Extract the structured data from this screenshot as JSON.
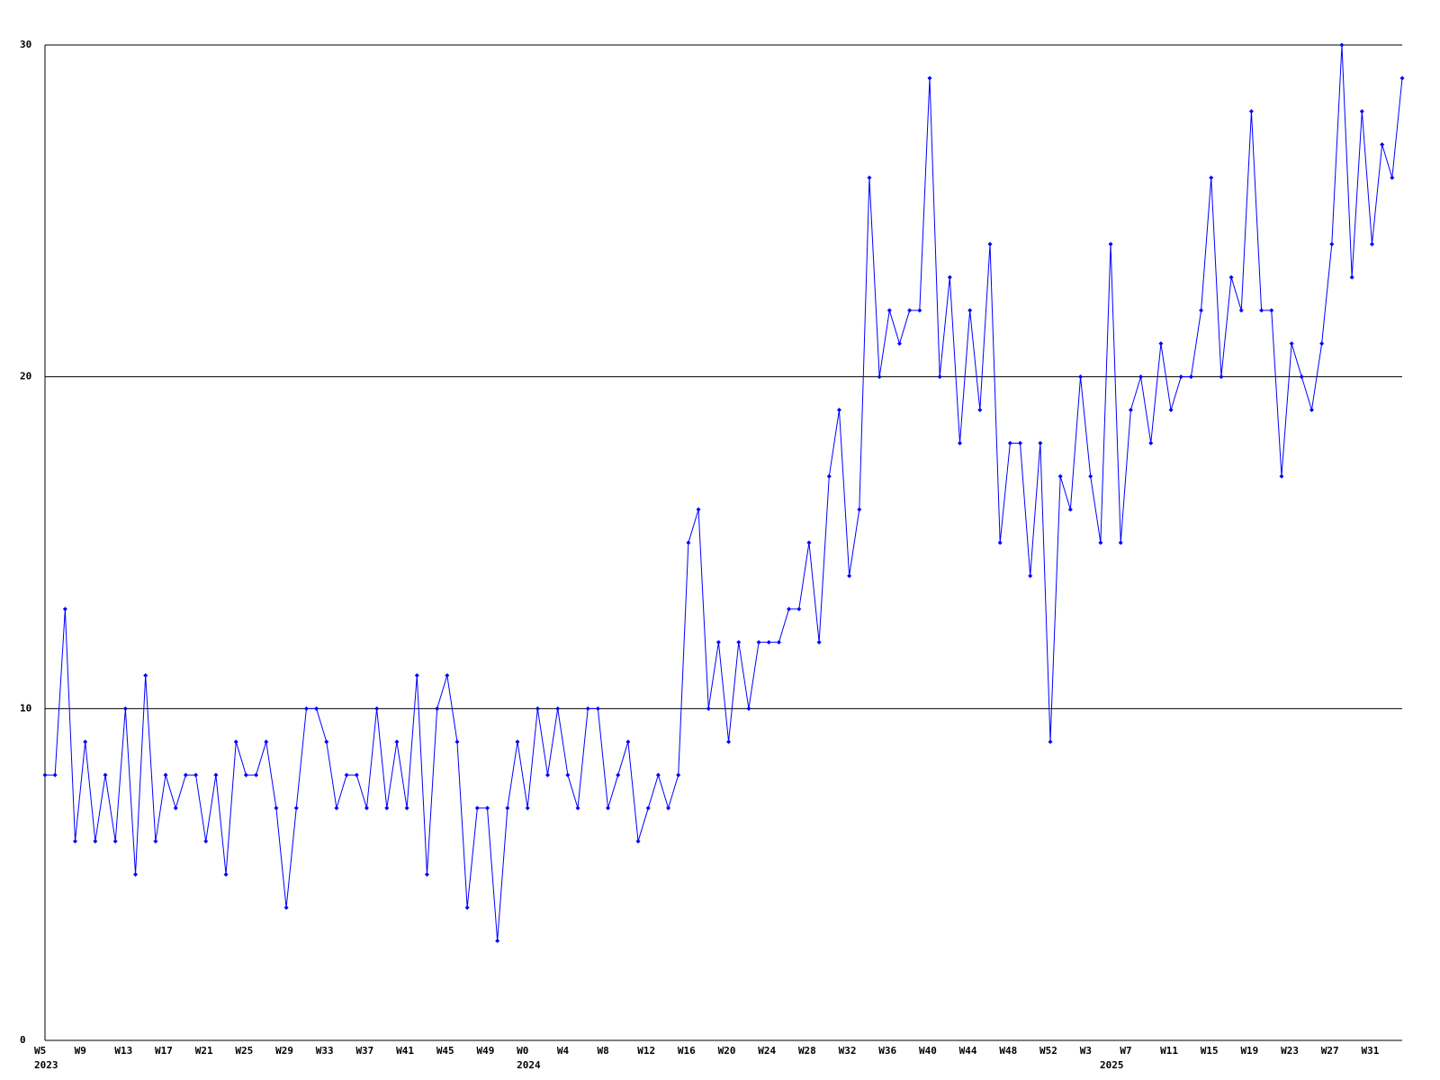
{
  "chart_data": {
    "type": "line",
    "categories": [
      "W5",
      null,
      null,
      null,
      "W9",
      null,
      null,
      null,
      "W13",
      null,
      null,
      null,
      "W17",
      null,
      null,
      null,
      "W21",
      null,
      null,
      null,
      "W25",
      null,
      null,
      null,
      "W29",
      null,
      null,
      null,
      "W33",
      null,
      null,
      null,
      "W37",
      null,
      null,
      null,
      "W41",
      null,
      null,
      null,
      "W45",
      null,
      null,
      null,
      "W49",
      null,
      null,
      null,
      "W0",
      null,
      null,
      null,
      "W4",
      null,
      null,
      null,
      "W8",
      null,
      null,
      null,
      "W12",
      null,
      null,
      null,
      "W16",
      null,
      null,
      null,
      "W20",
      null,
      null,
      null,
      "W24",
      null,
      null,
      null,
      "W28",
      null,
      null,
      null,
      "W32",
      null,
      null,
      null,
      "W36",
      null,
      null,
      null,
      "W40",
      null,
      null,
      null,
      "W44",
      null,
      null,
      null,
      "W48",
      null,
      null,
      null,
      "W52",
      null,
      null,
      null,
      "W3",
      null,
      null,
      null,
      "W7",
      null,
      null,
      null,
      "W11",
      null,
      null,
      null,
      "W15",
      null,
      null,
      null,
      "W19",
      null,
      null,
      null,
      "W23",
      null,
      null,
      null,
      "W27",
      null,
      null,
      null,
      "W31",
      null,
      null,
      null
    ],
    "year_labels": [
      "2023",
      null,
      null,
      null,
      null,
      null,
      null,
      null,
      null,
      null,
      null,
      null,
      null,
      null,
      null,
      null,
      null,
      null,
      null,
      null,
      null,
      null,
      null,
      null,
      null,
      null,
      null,
      null,
      null,
      null,
      null,
      null,
      null,
      null,
      null,
      null,
      null,
      null,
      null,
      null,
      null,
      null,
      null,
      null,
      null,
      null,
      null,
      null,
      "2024",
      null,
      null,
      null,
      null,
      null,
      null,
      null,
      null,
      null,
      null,
      null,
      null,
      null,
      null,
      null,
      null,
      null,
      null,
      null,
      null,
      null,
      null,
      null,
      null,
      null,
      null,
      null,
      null,
      null,
      null,
      null,
      null,
      null,
      null,
      null,
      null,
      null,
      null,
      null,
      null,
      null,
      null,
      null,
      null,
      null,
      null,
      null,
      null,
      null,
      null,
      null,
      null,
      null,
      null,
      null,
      null,
      null,
      "2025",
      null,
      null,
      null,
      null,
      null,
      null,
      null,
      null,
      null,
      null,
      null,
      null,
      null,
      null,
      null,
      null,
      null,
      null,
      null,
      null,
      null,
      null,
      null,
      null,
      null,
      null,
      null,
      null,
      null,
      null,
      null,
      null,
      null,
      null,
      null
    ],
    "series": [
      {
        "color": "#0000ff",
        "values": [
          8,
          8,
          13,
          6,
          9,
          6,
          8,
          6,
          10,
          5,
          11,
          6,
          8,
          7,
          8,
          8,
          6,
          8,
          5,
          9,
          8,
          8,
          9,
          7,
          4,
          7,
          10,
          10,
          9,
          7,
          8,
          8,
          7,
          10,
          7,
          9,
          7,
          11,
          5,
          10,
          11,
          9,
          4,
          7,
          7,
          3,
          7,
          9,
          7,
          10,
          8,
          10,
          8,
          7,
          10,
          10,
          7,
          8,
          9,
          6,
          7,
          8,
          7,
          8,
          15,
          16,
          10,
          12,
          9,
          12,
          10,
          12,
          12,
          12,
          13,
          13,
          15,
          12,
          17,
          19,
          14,
          16,
          26,
          20,
          22,
          21,
          22,
          22,
          29,
          20,
          23,
          18,
          22,
          19,
          24,
          15,
          18,
          18,
          14,
          18,
          9,
          17,
          16,
          20,
          17,
          15,
          24,
          15,
          19,
          20,
          18,
          21,
          19,
          20,
          20,
          22,
          26,
          20,
          23,
          22,
          28,
          22,
          22,
          17,
          21,
          20,
          19,
          21,
          24,
          30,
          23,
          28,
          24,
          27,
          26,
          29
        ]
      }
    ],
    "ylim": [
      0,
      30
    ],
    "yticks": [
      0,
      10,
      20,
      30
    ],
    "grid": true
  }
}
